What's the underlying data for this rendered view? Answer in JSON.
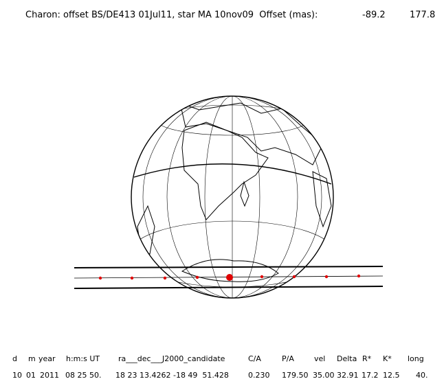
{
  "title": "Charon: offset BS/DE413 01Jul11, star MA 10nov09  Offset (mas):",
  "offset": [
    "-89.2",
    "177.8"
  ],
  "table": {
    "headers": [
      "d",
      "m",
      "year",
      "h:m:s UT",
      "ra___dec___J2000_candidate",
      "C/A",
      "P/A",
      "vel",
      "Delta",
      "R*",
      "K*",
      "long"
    ],
    "values": [
      "10",
      "01",
      "2011",
      "08 25 50.",
      "18 23 13.4262 -18 49  51.428",
      "0.230",
      "179.50",
      "35.00",
      "32.91",
      "17.2",
      "12.5",
      "40."
    ]
  }
}
